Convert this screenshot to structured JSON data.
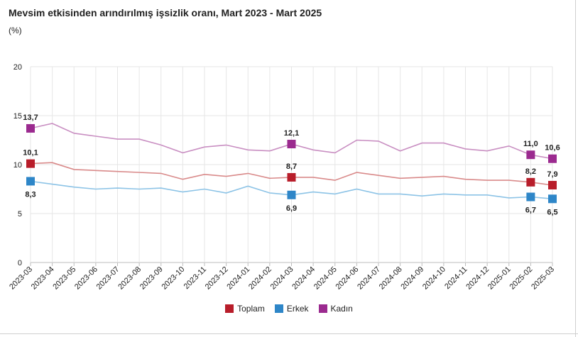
{
  "chart_data": {
    "type": "line",
    "title": "Mevsim etkisinden arındırılmış işsizlik oranı, Mart 2023 - Mart 2025",
    "ylabel": "(%)",
    "xlabel": "",
    "ylim": [
      0,
      20
    ],
    "yticks": [
      "0",
      "5",
      "10",
      "15",
      "20"
    ],
    "categories": [
      "2023-03",
      "2023-04",
      "2023-05",
      "2023-06",
      "2023-07",
      "2023-08",
      "2023-09",
      "2023-10",
      "2023-11",
      "2023-12",
      "2024-01",
      "2024-02",
      "2024-03",
      "2024-04",
      "2024-05",
      "2024-06",
      "2024-07",
      "2024-08",
      "2024-09",
      "2024-10",
      "2024-11",
      "2024-12",
      "2025-01",
      "2025-02",
      "2025-03"
    ],
    "grid": true,
    "legend_position": "bottom",
    "series": [
      {
        "name": "Toplam",
        "color": "#b81d2a",
        "line_color": "#d98a8a",
        "values": [
          10.1,
          10.2,
          9.5,
          9.4,
          9.3,
          9.2,
          9.1,
          8.5,
          9.0,
          8.8,
          9.1,
          8.6,
          8.7,
          8.7,
          8.4,
          9.2,
          8.9,
          8.6,
          8.7,
          8.8,
          8.5,
          8.4,
          8.4,
          8.2,
          7.9
        ],
        "labels": [
          {
            "index": 0,
            "text": "10,1",
            "pos": "above"
          },
          {
            "index": 12,
            "text": "8,7",
            "pos": "above"
          },
          {
            "index": 23,
            "text": "8,2",
            "pos": "above"
          },
          {
            "index": 24,
            "text": "7,9",
            "pos": "above"
          }
        ]
      },
      {
        "name": "Erkek",
        "color": "#2e86c8",
        "line_color": "#8cc3e6",
        "values": [
          8.3,
          8.0,
          7.7,
          7.5,
          7.6,
          7.5,
          7.6,
          7.2,
          7.5,
          7.1,
          7.8,
          7.1,
          6.9,
          7.2,
          7.0,
          7.5,
          7.0,
          7.0,
          6.8,
          7.0,
          6.9,
          6.9,
          6.6,
          6.7,
          6.5
        ],
        "labels": [
          {
            "index": 0,
            "text": "8,3",
            "pos": "below"
          },
          {
            "index": 12,
            "text": "6,9",
            "pos": "below"
          },
          {
            "index": 23,
            "text": "6,7",
            "pos": "below"
          },
          {
            "index": 24,
            "text": "6,5",
            "pos": "below"
          }
        ]
      },
      {
        "name": "Kadın",
        "color": "#9b2a8f",
        "line_color": "#c98fc2",
        "values": [
          13.7,
          14.2,
          13.2,
          12.9,
          12.6,
          12.6,
          12.0,
          11.2,
          11.8,
          12.0,
          11.5,
          11.4,
          12.1,
          11.5,
          11.2,
          12.5,
          12.4,
          11.4,
          12.2,
          12.2,
          11.6,
          11.4,
          11.9,
          11.0,
          10.6
        ],
        "labels": [
          {
            "index": 0,
            "text": "13,7",
            "pos": "above"
          },
          {
            "index": 12,
            "text": "12,1",
            "pos": "above"
          },
          {
            "index": 23,
            "text": "11,0",
            "pos": "above"
          },
          {
            "index": 24,
            "text": "10,6",
            "pos": "above"
          }
        ]
      }
    ]
  }
}
